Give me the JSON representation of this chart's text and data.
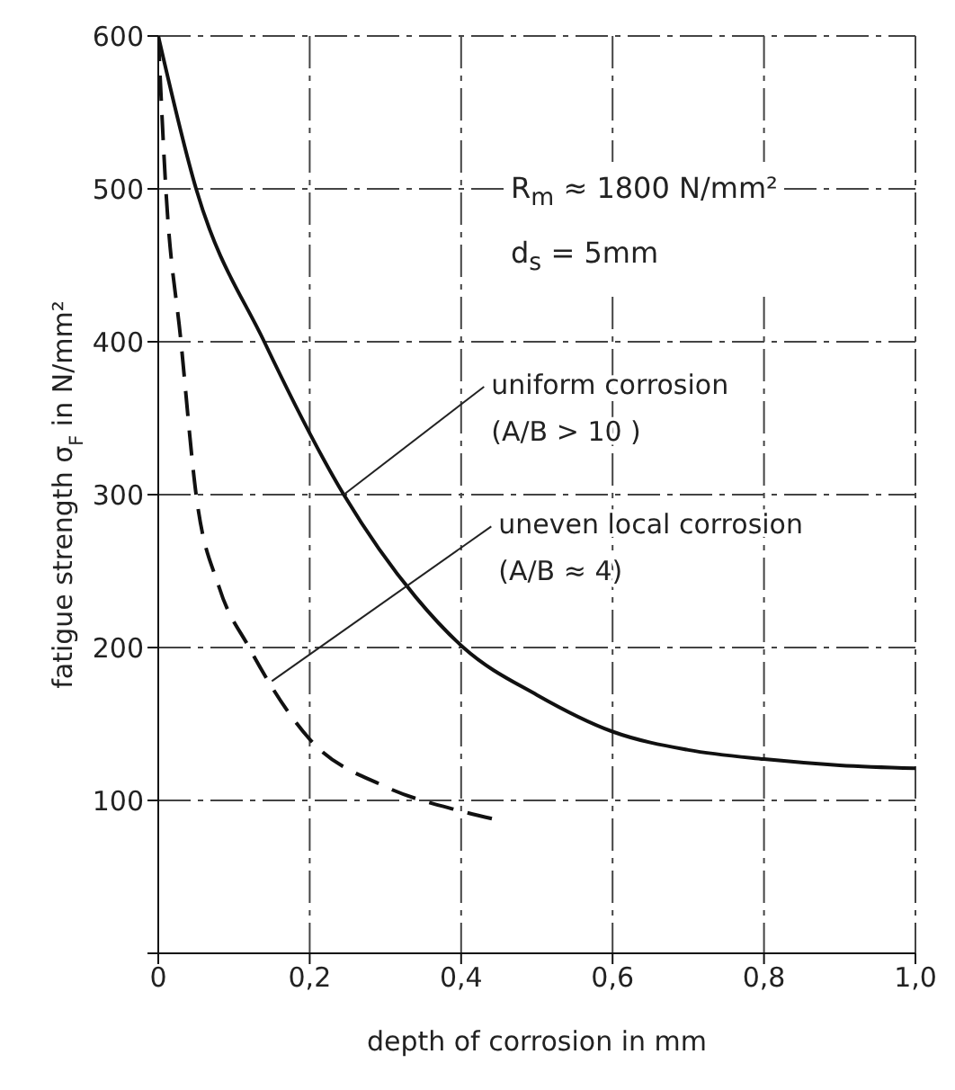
{
  "chart_data": {
    "type": "line",
    "xlabel": "depth of corrosion in mm",
    "ylabel": "fatigue strength σ$_{F}$ in N/mm²",
    "xlim": [
      0,
      1.0
    ],
    "xticks": [
      0,
      {
        "value": 0.2,
        "label": "0,2"
      },
      {
        "value": 0.4,
        "label": "0,4"
      },
      {
        "value": 0.6,
        "label": "0,6"
      },
      {
        "value": 0.8,
        "label": "0,8"
      },
      {
        "value": 1.0,
        "label": "1,0"
      }
    ],
    "ylim": [
      0,
      600
    ],
    "yticks": [
      {
        "value": 0,
        "label": null
      },
      100,
      200,
      300,
      400,
      500,
      600
    ],
    "grid": true,
    "marker": "none",
    "legend": false,
    "series": [
      {
        "color": "#111111",
        "line_style": "solid",
        "x": [
          0,
          0.05,
          0.14,
          0.245,
          0.34,
          0.403,
          0.5,
          0.6,
          0.7,
          0.8,
          0.9,
          1.0
        ],
        "values": [
          600,
          500,
          400,
          300,
          233,
          200,
          169,
          145,
          133,
          127,
          123,
          121
        ]
      },
      {
        "color": "#111111",
        "line_style": "dashed",
        "x": [
          0,
          0.01,
          0.03,
          0.05,
          0.08,
          0.12,
          0.2,
          0.3,
          0.4,
          0.45
        ],
        "values": [
          600,
          500,
          400,
          300,
          240,
          200,
          140,
          109,
          93,
          87
        ]
      }
    ],
    "annotations": [
      "R$_{m}$ ≈ 1800 N/mm²",
      "d$_{s}$ = 5mm",
      {
        "text": "uniform corrosion\n(A/B > 10 )",
        "x": 0.245,
        "y": 300
      },
      {
        "text": "uneven local corrosion\n(A/B ≈ 4)",
        "x": 0.15,
        "y": 178
      }
    ]
  }
}
